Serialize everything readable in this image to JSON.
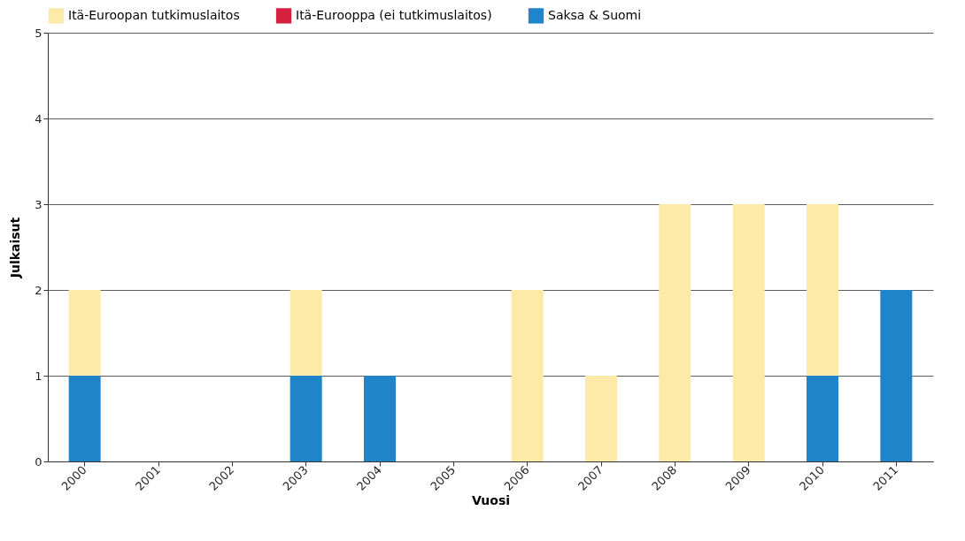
{
  "chart_data": {
    "type": "bar",
    "stacked": true,
    "xlabel": "Vuosi",
    "ylabel": "Julkaisut",
    "categories": [
      "2000",
      "2001",
      "2002",
      "2003",
      "2004",
      "2005",
      "2006",
      "2007",
      "2008",
      "2009",
      "2010",
      "2011"
    ],
    "series": [
      {
        "name": "Saksa & Suomi",
        "color": "#1f84c8",
        "values": [
          1,
          0,
          0,
          1,
          1,
          0,
          0,
          0,
          0,
          0,
          1,
          2
        ]
      },
      {
        "name": "Itä-Eurooppa (ei tutkimuslaitos)",
        "color": "#d4213d",
        "values": [
          0,
          0,
          0,
          0,
          0,
          0,
          0,
          0,
          0,
          0,
          0,
          0
        ]
      },
      {
        "name": "Itä-Euroopan tutkimuslaitos",
        "color": "#fdeaa8",
        "values": [
          1,
          0,
          0,
          1,
          0,
          0,
          2,
          1,
          3,
          3,
          2,
          0
        ]
      }
    ],
    "ylim": [
      0,
      5
    ],
    "yticks": [
      0,
      1,
      2,
      3,
      4,
      5
    ],
    "grid": "y",
    "legend": "top"
  }
}
